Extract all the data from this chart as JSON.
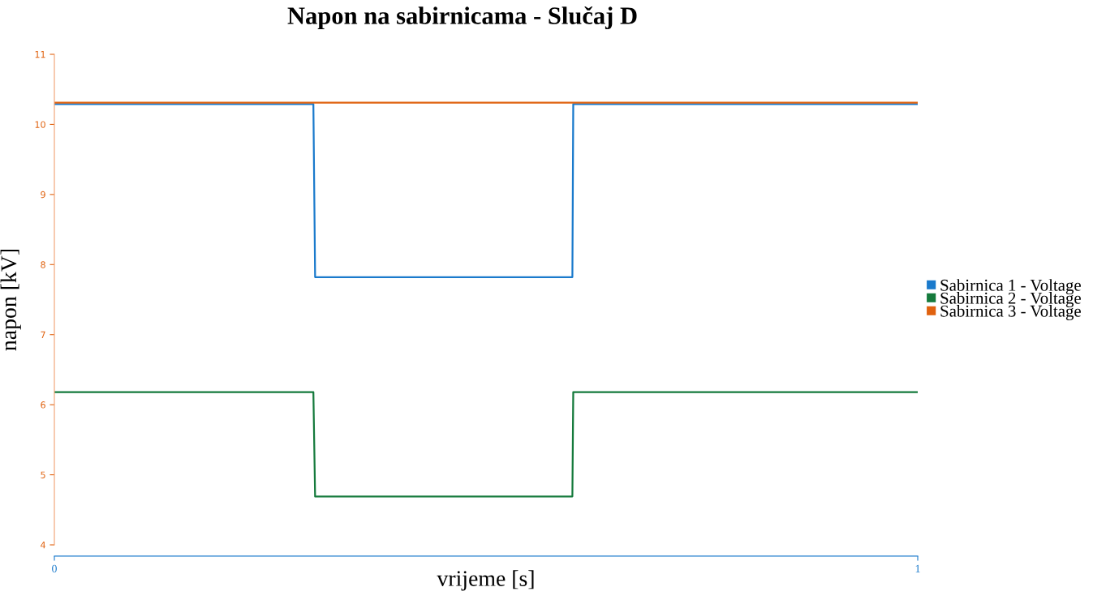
{
  "chart_data": {
    "type": "line",
    "title": "Napon na sabirnicama - Slučaj D",
    "xlabel": "vrijeme [s]",
    "ylabel": "napon [kV]",
    "x": [
      0,
      0.3,
      0.302,
      0.6,
      0.601,
      1
    ],
    "series": [
      {
        "name": "Sabirnica 1 - Voltage",
        "color": "#1a7acc",
        "values": [
          10.29,
          10.29,
          7.82,
          7.82,
          10.29,
          10.29
        ]
      },
      {
        "name": "Sabirnica 2 - Voltage",
        "color": "#157a3c",
        "values": [
          6.18,
          6.18,
          4.69,
          4.69,
          6.18,
          6.18
        ]
      },
      {
        "name": "Sabirnica 3 - Voltage",
        "color": "#e0620f",
        "values": [
          10.31,
          10.31,
          10.31,
          10.31,
          10.31,
          10.31
        ]
      }
    ],
    "xlim": [
      0,
      1
    ],
    "xticks": [
      0,
      1
    ],
    "ylim": [
      4,
      11
    ],
    "yticks": [
      4,
      5,
      6,
      7,
      8,
      9,
      10,
      11
    ],
    "grid": false,
    "legend": "right",
    "marker": "none",
    "line_style": "solid"
  }
}
